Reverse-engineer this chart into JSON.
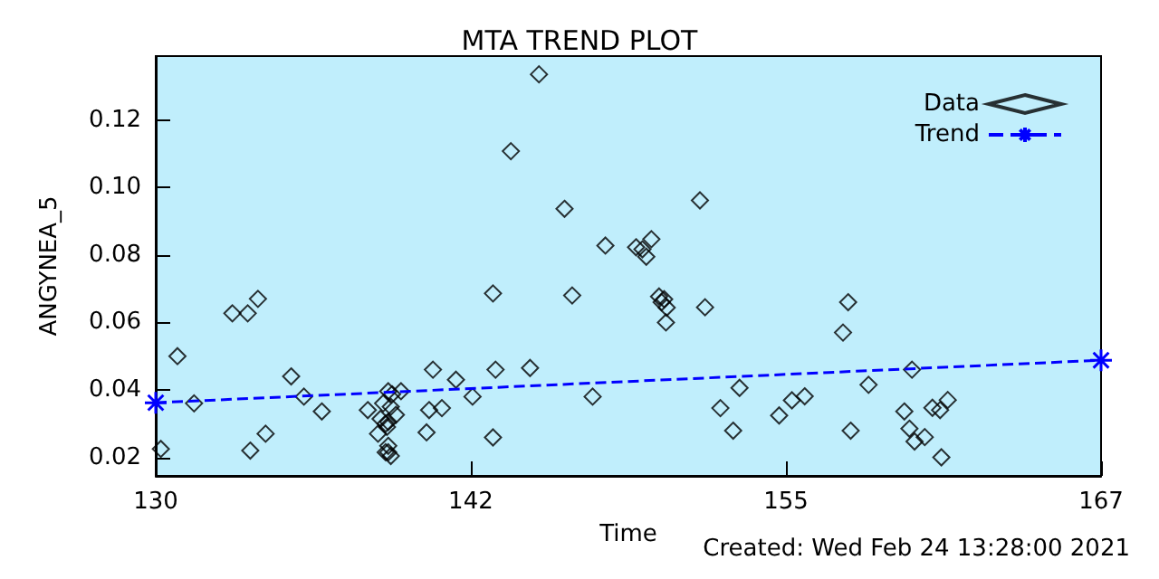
{
  "chart_data": {
    "type": "scatter",
    "title": "MTA TREND PLOT",
    "xlabel": "Time",
    "ylabel": "ANGYNEA_5",
    "annotations": [
      "Created: Wed Feb 24 13:28:00 2021"
    ],
    "xlim": [
      130,
      167
    ],
    "xticks": [
      130,
      {
        "value": 142.33,
        "label": "142"
      },
      {
        "value": 154.67,
        "label": "155"
      },
      167
    ],
    "ylim": [
      0.0145,
      0.139
    ],
    "yticks": [
      {
        "value": 0.02,
        "label": "0.02"
      },
      {
        "value": 0.04,
        "label": "0.04"
      },
      {
        "value": 0.06,
        "label": "0.06"
      },
      {
        "value": 0.08,
        "label": "0.08"
      },
      {
        "value": 0.1,
        "label": "0.10"
      },
      {
        "value": 0.12,
        "label": "0.12"
      }
    ],
    "grid": false,
    "legend": "top right",
    "series": [
      {
        "name": "Data",
        "color": "#000000",
        "marker": "diamond",
        "x": [
          130.2,
          130.85,
          131.5,
          133.0,
          133.6,
          134.0,
          133.7,
          134.3,
          135.3,
          135.8,
          136.5,
          138.3,
          139.1,
          139.25,
          139.6,
          138.9,
          139.2,
          138.8,
          139.4,
          139.0,
          139.05,
          139.1,
          138.7,
          139.1,
          139.0,
          139.1,
          139.2,
          140.6,
          140.7,
          140.85,
          141.2,
          141.75,
          142.4,
          143.2,
          143.2,
          143.3,
          143.9,
          145.0,
          144.65,
          146.0,
          146.3,
          147.1,
          147.6,
          148.8,
          149.05,
          149.2,
          149.4,
          149.7,
          149.9,
          150.0,
          149.97,
          149.8,
          151.3,
          151.5,
          152.1,
          152.6,
          152.85,
          154.4,
          154.9,
          155.4,
          156.9,
          157.1,
          157.2,
          157.9,
          159.3,
          159.6,
          159.5,
          159.7,
          160.1,
          160.4,
          160.7,
          161.0,
          160.75
        ],
        "values": [
          0.0225,
          0.05,
          0.036,
          0.0627,
          0.0627,
          0.067,
          0.022,
          0.027,
          0.044,
          0.038,
          0.0336,
          0.034,
          0.0396,
          0.0387,
          0.0396,
          0.036,
          0.035,
          0.0314,
          0.0326,
          0.03,
          0.029,
          0.0305,
          0.027,
          0.0234,
          0.0215,
          0.0215,
          0.0204,
          0.0274,
          0.034,
          0.046,
          0.0346,
          0.043,
          0.038,
          0.0686,
          0.0259,
          0.046,
          0.1108,
          0.1336,
          0.0465,
          0.0937,
          0.068,
          0.038,
          0.0828,
          0.0823,
          0.0817,
          0.0795,
          0.0847,
          0.0677,
          0.0669,
          0.0644,
          0.06,
          0.066,
          0.0962,
          0.0645,
          0.0346,
          0.0279,
          0.0406,
          0.0324,
          0.0369,
          0.0381,
          0.057,
          0.066,
          0.0279,
          0.0415,
          0.0336,
          0.046,
          0.0285,
          0.0247,
          0.026,
          0.0347,
          0.034,
          0.037,
          0.02
        ]
      },
      {
        "name": "Trend",
        "type": "line",
        "color": "#0000ff",
        "marker": "cross",
        "line_style": "dashed",
        "x": [
          130,
          167
        ],
        "values": [
          0.0362,
          0.0488
        ]
      }
    ]
  }
}
